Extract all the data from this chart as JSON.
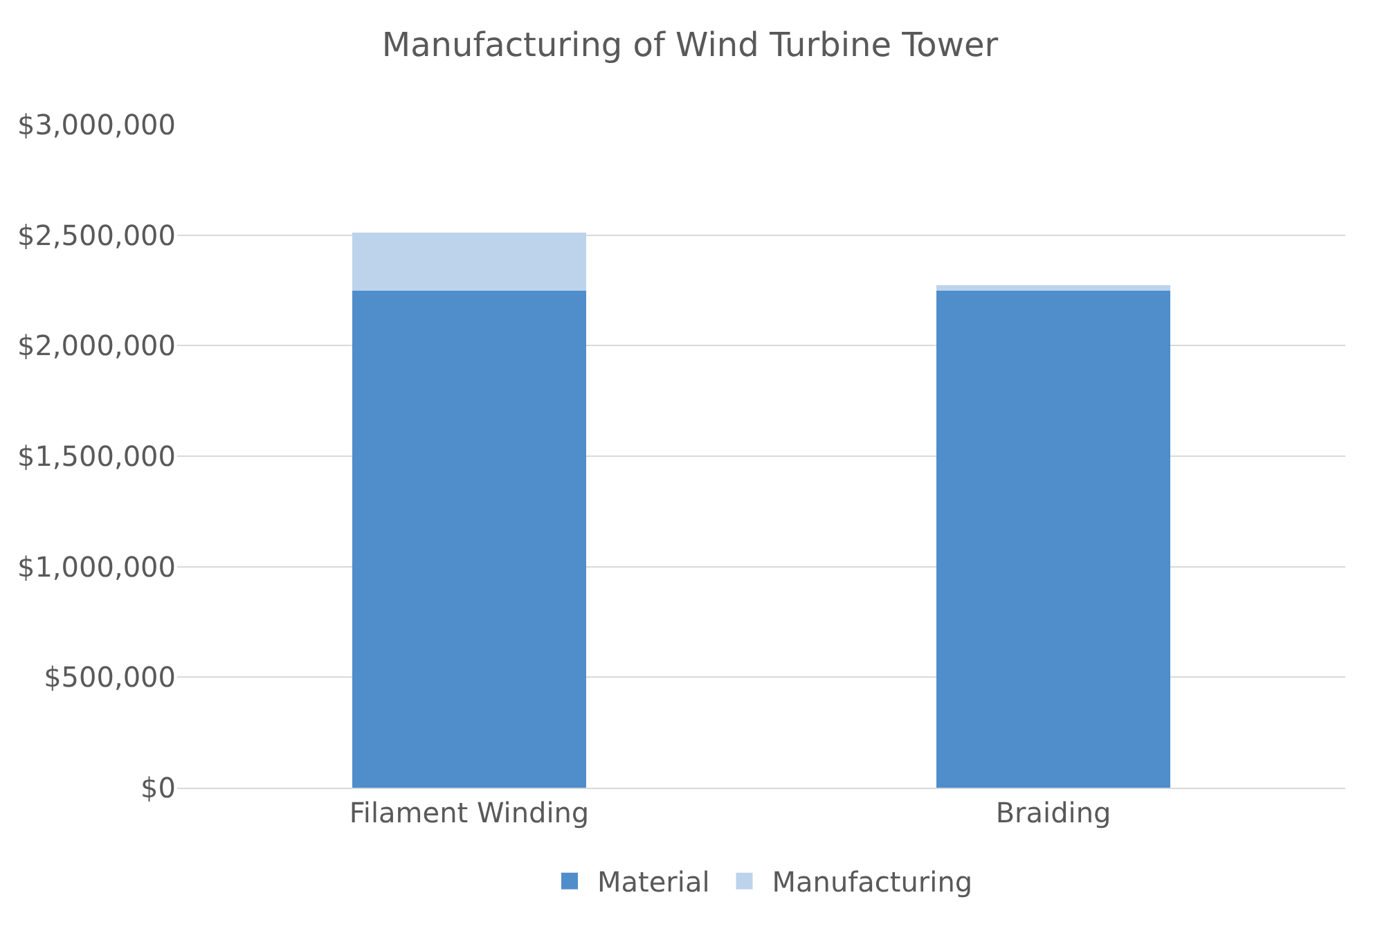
{
  "chart_data": {
    "type": "bar",
    "title": "Manufacturing of Wind Turbine Tower",
    "categories": [
      "Filament Winding",
      "Braiding"
    ],
    "stacked": true,
    "series": [
      {
        "name": "Material",
        "color": "#4f8dcb",
        "values": [
          2250000,
          2250000
        ]
      },
      {
        "name": "Manufacturing",
        "color": "#bcd3eb",
        "values": [
          260000,
          25000
        ]
      }
    ],
    "ylim": [
      0,
      3000000
    ],
    "yticks": [
      {
        "value": 0,
        "label": "$0"
      },
      {
        "value": 500000,
        "label": "$500,000"
      },
      {
        "value": 1000000,
        "label": "$1,000,000"
      },
      {
        "value": 1500000,
        "label": "$1,500,000"
      },
      {
        "value": 2000000,
        "label": "$2,000,000"
      },
      {
        "value": 2500000,
        "label": "$2,500,000"
      },
      {
        "value": 3000000,
        "label": "$3,000,000"
      }
    ],
    "grid": "y",
    "legend": "bottom"
  }
}
